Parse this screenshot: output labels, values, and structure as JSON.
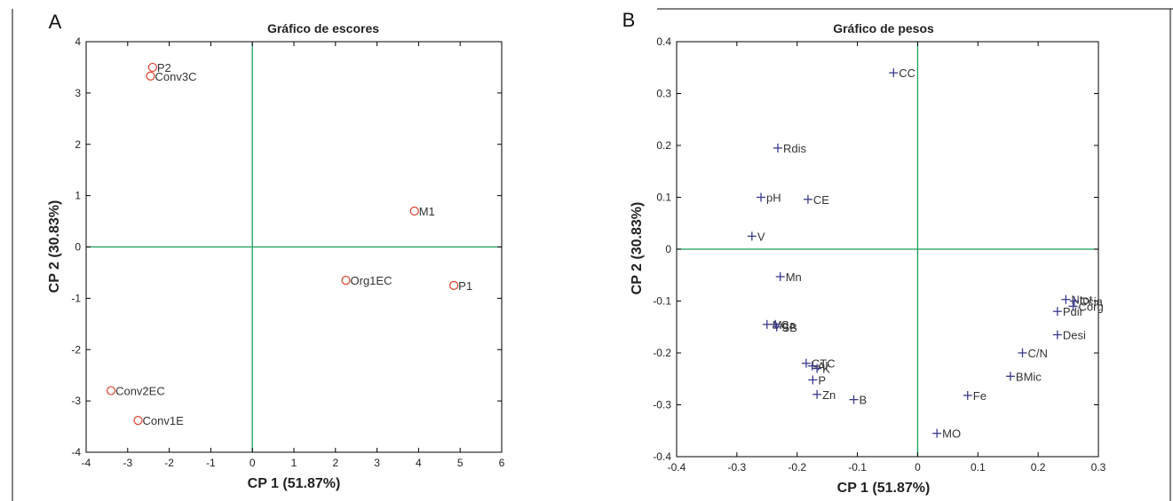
{
  "chart_data": [
    {
      "type": "scatter",
      "panel_label": "A",
      "title": "Gráfico de escores",
      "xlabel": "CP 1 (51.87%)",
      "ylabel": "CP 2 (30.83%)",
      "xlim": [
        -4,
        6
      ],
      "ylim": [
        -4,
        4
      ],
      "xticks": [
        -4,
        -3,
        -2,
        -1,
        0,
        1,
        2,
        3,
        4,
        5,
        6
      ],
      "yticks": [
        -4,
        -3,
        -2,
        -1,
        0,
        1,
        2,
        3,
        4
      ],
      "marker": "circle",
      "marker_color": "#e0402a",
      "axis_line_color": "#1aa05a",
      "points": [
        {
          "label": "P2",
          "x": -2.4,
          "y": 3.5
        },
        {
          "label": "Conv3C",
          "x": -2.45,
          "y": 3.33
        },
        {
          "label": "M1",
          "x": 3.9,
          "y": 0.7
        },
        {
          "label": "Org1EC",
          "x": 2.25,
          "y": -0.65
        },
        {
          "label": "P1",
          "x": 4.85,
          "y": -0.75
        },
        {
          "label": "Conv2EC",
          "x": -3.4,
          "y": -2.8
        },
        {
          "label": "Conv1E",
          "x": -2.75,
          "y": -3.38
        }
      ]
    },
    {
      "type": "scatter",
      "panel_label": "B",
      "title": "Gráfico de pesos",
      "xlabel": "CP 1 (51.87%)",
      "ylabel": "CP 2 (30.83%)",
      "xlim": [
        -0.4,
        0.3
      ],
      "ylim": [
        -0.4,
        0.4
      ],
      "xticks": [
        -0.4,
        -0.3,
        -0.2,
        -0.1,
        0,
        0.1,
        0.2,
        0.3
      ],
      "yticks": [
        -0.4,
        -0.3,
        -0.2,
        -0.1,
        0,
        0.1,
        0.2,
        0.3,
        0.4
      ],
      "marker": "plus",
      "marker_color": "#3a3a8c",
      "axis_line_color": "#1aa05a",
      "points": [
        {
          "label": "CC",
          "x": -0.04,
          "y": 0.34
        },
        {
          "label": "Rdis",
          "x": -0.232,
          "y": 0.195
        },
        {
          "label": "pH",
          "x": -0.26,
          "y": 0.1
        },
        {
          "label": "CE",
          "x": -0.182,
          "y": 0.096
        },
        {
          "label": "V",
          "x": -0.275,
          "y": 0.025
        },
        {
          "label": "Mn",
          "x": -0.228,
          "y": -0.053
        },
        {
          "label": "Mg",
          "x": -0.25,
          "y": -0.145
        },
        {
          "label": "Ca",
          "x": -0.236,
          "y": -0.145
        },
        {
          "label": "SB",
          "x": -0.234,
          "y": -0.15
        },
        {
          "label": "CTC",
          "x": -0.185,
          "y": -0.22
        },
        {
          "label": "Al",
          "x": -0.175,
          "y": -0.225
        },
        {
          "label": "K",
          "x": -0.167,
          "y": -0.23
        },
        {
          "label": "P",
          "x": -0.174,
          "y": -0.252
        },
        {
          "label": "Zn",
          "x": -0.167,
          "y": -0.28
        },
        {
          "label": "B",
          "x": -0.106,
          "y": -0.29
        },
        {
          "label": "MO",
          "x": 0.032,
          "y": -0.355
        },
        {
          "label": "Fe",
          "x": 0.083,
          "y": -0.282
        },
        {
          "label": "BMic",
          "x": 0.154,
          "y": -0.245
        },
        {
          "label": "C/N",
          "x": 0.174,
          "y": -0.2
        },
        {
          "label": "Desi",
          "x": 0.232,
          "y": -0.165
        },
        {
          "label": "Pdir",
          "x": 0.232,
          "y": -0.12
        },
        {
          "label": "Ntot",
          "x": 0.246,
          "y": -0.097
        },
        {
          "label": "Ccia",
          "x": 0.26,
          "y": -0.1
        },
        {
          "label": "Corg",
          "x": 0.258,
          "y": -0.11
        }
      ]
    }
  ]
}
